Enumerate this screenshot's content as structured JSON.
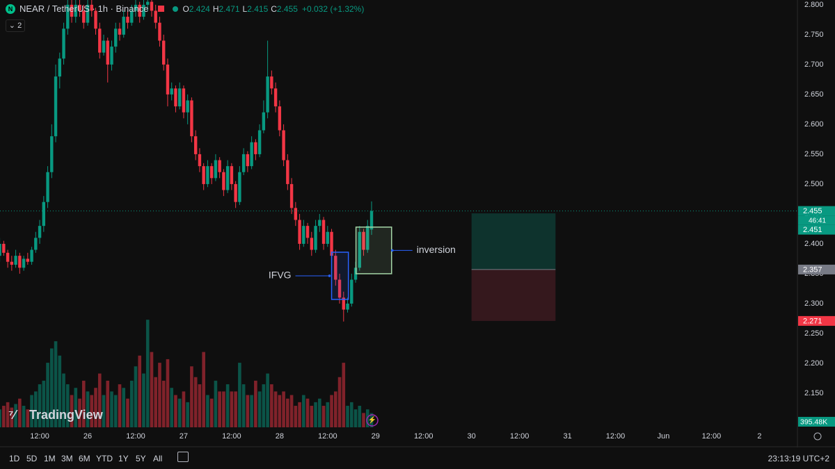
{
  "chart_data": {
    "type": "candlestick",
    "title": "NEAR / TetherUS · 1h · Binance",
    "indicator_count": "2",
    "ohlc_legend": [
      {
        "label": "O",
        "value": 2.424
      },
      {
        "label": "H",
        "value": 2.471
      },
      {
        "label": "L",
        "value": 2.415
      },
      {
        "label": "C",
        "value": 2.455
      }
    ],
    "change": "+0.032 (+1.32%)",
    "up_color": "#089981",
    "down_color": "#f23645",
    "x": [
      2,
      3,
      4,
      5,
      6,
      7,
      8,
      9,
      10,
      11,
      12,
      13,
      14,
      15,
      16,
      17,
      18,
      19,
      20,
      21,
      22,
      23,
      24,
      25,
      26,
      27,
      28,
      29,
      30,
      31,
      32,
      33,
      34,
      35,
      36,
      37,
      38,
      39,
      40,
      41,
      42,
      43,
      44,
      45,
      46,
      47,
      48,
      49,
      50,
      51,
      52,
      53,
      54,
      55,
      56,
      57,
      58,
      59,
      60,
      61,
      62,
      63,
      64,
      65,
      66,
      67,
      68,
      69,
      70,
      71,
      72,
      73,
      74,
      75,
      76,
      77,
      78,
      79,
      80,
      81,
      82,
      83,
      84,
      85,
      86,
      87,
      88,
      89,
      90,
      91,
      92,
      93,
      94,
      95
    ],
    "open": [
      2.38,
      2.4,
      2.385,
      2.37,
      2.365,
      2.38,
      2.36,
      2.375,
      2.37,
      2.39,
      2.41,
      2.43,
      2.47,
      2.52,
      2.58,
      2.68,
      2.71,
      2.76,
      2.8,
      2.78,
      2.8,
      2.79,
      2.77,
      2.8,
      2.79,
      2.76,
      2.72,
      2.74,
      2.7,
      2.73,
      2.76,
      2.75,
      2.78,
      2.77,
      2.79,
      2.8,
      2.78,
      2.8,
      2.805,
      2.79,
      2.77,
      2.74,
      2.7,
      2.65,
      2.66,
      2.63,
      2.66,
      2.62,
      2.64,
      2.58,
      2.55,
      2.53,
      2.5,
      2.53,
      2.51,
      2.54,
      2.52,
      2.49,
      2.53,
      2.5,
      2.47,
      2.52,
      2.55,
      2.53,
      2.57,
      2.55,
      2.59,
      2.62,
      2.68,
      2.66,
      2.63,
      2.59,
      2.54,
      2.5,
      2.46,
      2.44,
      2.4,
      2.43,
      2.41,
      2.39,
      2.43,
      2.44,
      2.4,
      2.42,
      2.38,
      2.34,
      2.31,
      2.29,
      2.3,
      2.34,
      2.36,
      2.42,
      2.39,
      2.424
    ],
    "high": [
      2.41,
      2.405,
      2.39,
      2.38,
      2.39,
      2.385,
      2.38,
      2.385,
      2.395,
      2.42,
      2.44,
      2.48,
      2.53,
      2.6,
      2.7,
      2.72,
      2.77,
      2.81,
      2.81,
      2.81,
      2.81,
      2.8,
      2.81,
      2.81,
      2.795,
      2.77,
      2.75,
      2.745,
      2.74,
      2.77,
      2.77,
      2.79,
      2.79,
      2.8,
      2.81,
      2.805,
      2.81,
      2.81,
      2.81,
      2.8,
      2.78,
      2.75,
      2.71,
      2.67,
      2.665,
      2.67,
      2.665,
      2.65,
      2.645,
      2.59,
      2.56,
      2.535,
      2.54,
      2.535,
      2.55,
      2.545,
      2.525,
      2.54,
      2.535,
      2.505,
      2.53,
      2.56,
      2.555,
      2.58,
      2.575,
      2.6,
      2.64,
      2.74,
      2.69,
      2.67,
      2.64,
      2.6,
      2.55,
      2.51,
      2.47,
      2.45,
      2.44,
      2.435,
      2.42,
      2.44,
      2.45,
      2.445,
      2.43,
      2.425,
      2.39,
      2.35,
      2.32,
      2.31,
      2.35,
      2.37,
      2.43,
      2.425,
      2.44,
      2.471
    ],
    "low": [
      2.37,
      2.38,
      2.36,
      2.355,
      2.36,
      2.35,
      2.355,
      2.365,
      2.365,
      2.385,
      2.4,
      2.42,
      2.46,
      2.51,
      2.57,
      2.66,
      2.7,
      2.75,
      2.77,
      2.77,
      2.78,
      2.76,
      2.765,
      2.78,
      2.75,
      2.71,
      2.715,
      2.67,
      2.69,
      2.72,
      2.74,
      2.745,
      2.76,
      2.765,
      2.78,
      2.77,
      2.775,
      2.79,
      2.78,
      2.76,
      2.73,
      2.69,
      2.63,
      2.64,
      2.62,
      2.625,
      2.61,
      2.6,
      2.57,
      2.54,
      2.52,
      2.49,
      2.495,
      2.5,
      2.505,
      2.51,
      2.48,
      2.485,
      2.49,
      2.46,
      2.465,
      2.515,
      2.52,
      2.525,
      2.54,
      2.545,
      2.585,
      2.61,
      2.65,
      2.62,
      2.58,
      2.53,
      2.49,
      2.45,
      2.43,
      2.39,
      2.395,
      2.4,
      2.38,
      2.385,
      2.42,
      2.39,
      2.395,
      2.37,
      2.33,
      2.3,
      2.27,
      2.285,
      2.295,
      2.335,
      2.355,
      2.38,
      2.385,
      2.415
    ],
    "close": [
      2.4,
      2.385,
      2.37,
      2.365,
      2.38,
      2.36,
      2.375,
      2.37,
      2.39,
      2.41,
      2.43,
      2.47,
      2.52,
      2.58,
      2.68,
      2.71,
      2.76,
      2.8,
      2.78,
      2.8,
      2.79,
      2.77,
      2.8,
      2.79,
      2.76,
      2.72,
      2.74,
      2.7,
      2.73,
      2.76,
      2.75,
      2.78,
      2.77,
      2.79,
      2.8,
      2.78,
      2.8,
      2.805,
      2.79,
      2.77,
      2.74,
      2.7,
      2.65,
      2.66,
      2.63,
      2.66,
      2.62,
      2.64,
      2.58,
      2.55,
      2.53,
      2.5,
      2.53,
      2.51,
      2.54,
      2.52,
      2.49,
      2.53,
      2.5,
      2.47,
      2.52,
      2.55,
      2.53,
      2.57,
      2.55,
      2.59,
      2.62,
      2.68,
      2.66,
      2.63,
      2.59,
      2.54,
      2.5,
      2.46,
      2.44,
      2.4,
      2.43,
      2.41,
      2.39,
      2.43,
      2.44,
      2.4,
      2.42,
      2.38,
      2.34,
      2.31,
      2.29,
      2.3,
      2.34,
      2.36,
      2.42,
      2.39,
      2.43,
      2.455
    ],
    "volume": {
      "values": [
        500000,
        600000,
        700000,
        550000,
        650000,
        800000,
        600000,
        500000,
        900000,
        1000000,
        1200000,
        1300000,
        1800000,
        2200000,
        2400000,
        2000000,
        1500000,
        1200000,
        900000,
        1100000,
        800000,
        1300000,
        1000000,
        900000,
        1100000,
        1500000,
        900000,
        1300000,
        1000000,
        900000,
        1200000,
        1100000,
        800000,
        1300000,
        1700000,
        2000000,
        1500000,
        3000000,
        2100000,
        1400000,
        1800000,
        1300000,
        1900000,
        1100000,
        900000,
        800000,
        1000000,
        700000,
        1700000,
        1400000,
        1200000,
        2100000,
        900000,
        800000,
        1300000,
        1000000,
        1000000,
        1200000,
        1000000,
        1000000,
        1800000,
        1200000,
        900000,
        900000,
        1300000,
        1000000,
        1200000,
        1500000,
        1200000,
        1000000,
        900000,
        1000000,
        800000,
        900000,
        600000,
        700000,
        900000,
        800000,
        600000,
        700000,
        800000,
        600000,
        700000,
        900000,
        1000000,
        1400000,
        1800000,
        600000,
        700000,
        500000,
        600000,
        400000,
        500000,
        395480
      ],
      "last_label": "395.48K",
      "lim": [
        0,
        3100000
      ]
    },
    "xlim": [
      2.07,
      201.5
    ],
    "xticks": [
      {
        "value": 12,
        "label": "12:00"
      },
      {
        "value": 24,
        "label": "26"
      },
      {
        "value": 36,
        "label": "12:00"
      },
      {
        "value": 48,
        "label": "27"
      },
      {
        "value": 60,
        "label": "12:00"
      },
      {
        "value": 72,
        "label": "28"
      },
      {
        "value": 84,
        "label": "12:00"
      },
      {
        "value": 96,
        "label": "29"
      },
      {
        "value": 108,
        "label": "12:00"
      },
      {
        "value": 120,
        "label": "30"
      },
      {
        "value": 132,
        "label": "12:00"
      },
      {
        "value": 144,
        "label": "31"
      },
      {
        "value": 156,
        "label": "12:00"
      },
      {
        "value": 168,
        "label": "Jun"
      },
      {
        "value": 180,
        "label": "12:00"
      },
      {
        "value": 192,
        "label": "2"
      }
    ],
    "ylim": [
      2.093,
      2.808
    ],
    "yticks": [
      {
        "value": 2.8,
        "label": "2.800"
      },
      {
        "value": 2.75,
        "label": "2.750"
      },
      {
        "value": 2.7,
        "label": "2.700"
      },
      {
        "value": 2.65,
        "label": "2.650"
      },
      {
        "value": 2.6,
        "label": "2.600"
      },
      {
        "value": 2.55,
        "label": "2.550"
      },
      {
        "value": 2.5,
        "label": "2.500"
      },
      {
        "value": 2.45,
        "label": "2.450"
      },
      {
        "value": 2.4,
        "label": "2.400"
      },
      {
        "value": 2.35,
        "label": "2.350"
      },
      {
        "value": 2.3,
        "label": "2.300"
      },
      {
        "value": 2.25,
        "label": "2.250"
      },
      {
        "value": 2.2,
        "label": "2.200"
      },
      {
        "value": 2.15,
        "label": "2.150"
      }
    ],
    "grid": false,
    "current_price": 2.455,
    "price_labels": [
      {
        "value": 2.455,
        "color": "#089981",
        "countdown": "46:41"
      },
      {
        "value": 2.451,
        "color": "#089981"
      },
      {
        "value": 2.357,
        "color": "#787b86"
      },
      {
        "value": 2.271,
        "color": "#f23645"
      }
    ],
    "position": {
      "x": [
        120,
        141
      ],
      "target": 2.451,
      "entry": 2.357,
      "stop": 2.271
    },
    "annotations": [
      {
        "label": "IFVG",
        "x": [
          85,
          89.2
        ],
        "y": [
          2.307,
          2.386
        ],
        "color": "#2962ff",
        "side": "left"
      },
      {
        "label": "inversion",
        "x": [
          91.1,
          100
        ],
        "y": [
          2.35,
          2.428
        ],
        "color": "#a5d6a7",
        "side": "right"
      }
    ]
  },
  "watermark": "TradingView",
  "toolbar": {
    "ranges": [
      "1D",
      "5D",
      "1M",
      "3M",
      "6M",
      "YTD",
      "1Y",
      "5Y",
      "All"
    ],
    "clock": "23:13:19 UTC+2"
  }
}
